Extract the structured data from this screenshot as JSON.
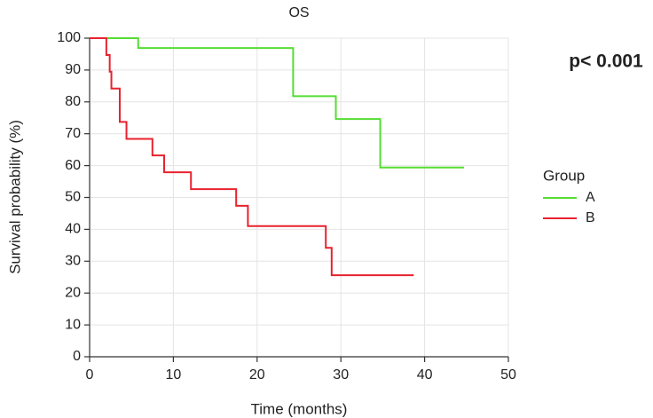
{
  "chart_data": {
    "type": "step",
    "title": "OS",
    "x_label": "Time (months)",
    "y_label": "Survival probability (%)",
    "annotation": "p< 0.001",
    "legend_title": "Group",
    "legend": "right",
    "series": [
      {
        "name": "A",
        "color": "#55dd33",
        "x": [
          0,
          5.8,
          24.3,
          29.4,
          34.7,
          44.7
        ],
        "values": [
          100,
          96.9,
          81.8,
          74.6,
          59.4,
          59.4
        ]
      },
      {
        "name": "B",
        "color": "#e8222e",
        "x": [
          0,
          2.0,
          2.4,
          2.6,
          3.6,
          4.4,
          7.5,
          8.9,
          12.1,
          17.5,
          18.9,
          28.2,
          28.9,
          38.7
        ],
        "values": [
          100,
          94.7,
          89.5,
          84.2,
          73.7,
          68.4,
          63.2,
          57.9,
          52.6,
          47.4,
          41,
          34.2,
          25.6,
          25.6
        ]
      }
    ],
    "xlim": [
      0,
      50
    ],
    "xticks": [
      0,
      10,
      20,
      30,
      40,
      50
    ],
    "ylim": [
      0,
      100
    ],
    "yticks": [
      0,
      10,
      20,
      30,
      40,
      50,
      60,
      70,
      80,
      90,
      100
    ],
    "grid": true
  }
}
